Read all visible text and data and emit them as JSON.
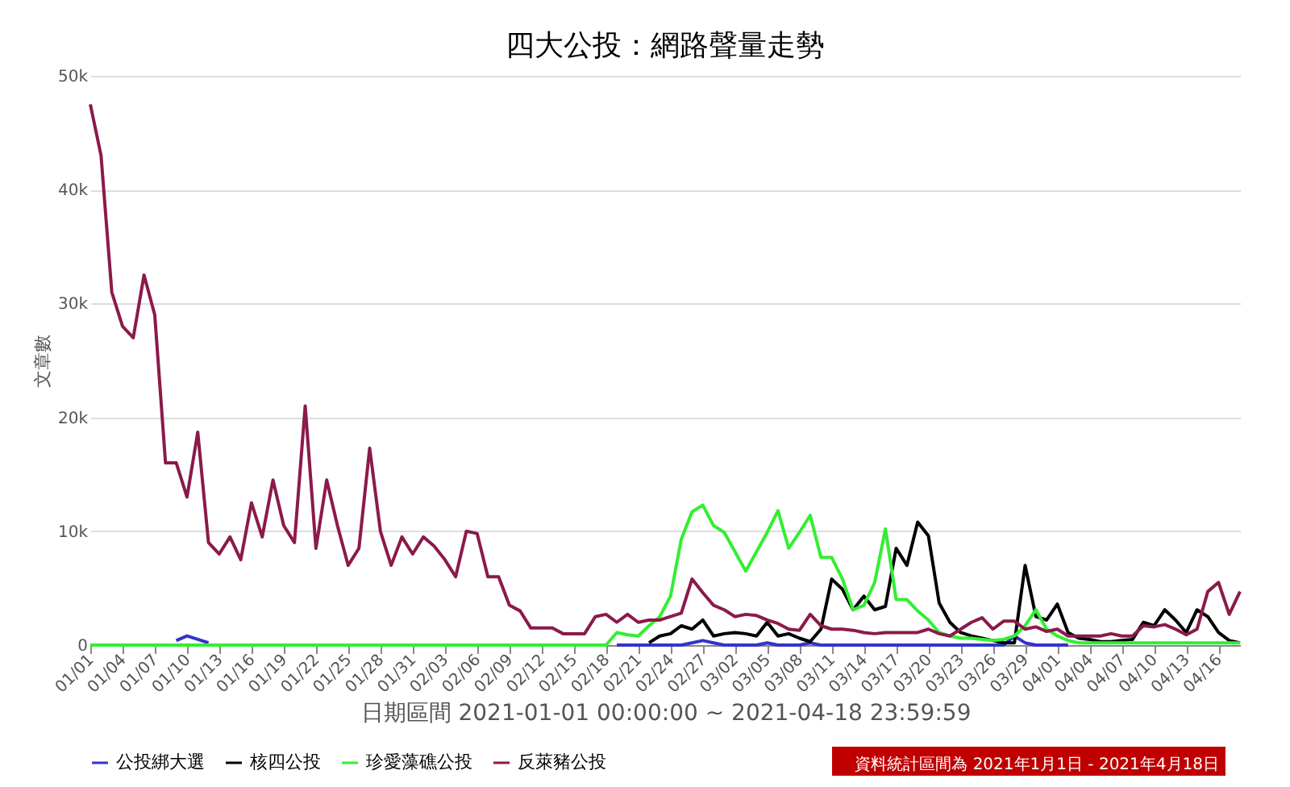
{
  "chart_data": {
    "type": "line",
    "title": "四大公投：網路聲量走勢",
    "xlabel": "日期區間 2021-01-01 00:00:00 ~ 2021-04-18 23:59:59",
    "ylabel": "文章數",
    "categories": [
      "01/01",
      null,
      null,
      "01/04",
      null,
      null,
      "01/07",
      null,
      null,
      "01/10",
      null,
      null,
      "01/13",
      null,
      null,
      "01/16",
      null,
      null,
      "01/19",
      null,
      null,
      "01/22",
      null,
      null,
      "01/25",
      null,
      null,
      "01/28",
      null,
      null,
      "01/31",
      null,
      null,
      "02/03",
      null,
      null,
      "02/06",
      null,
      null,
      "02/09",
      null,
      null,
      "02/12",
      null,
      null,
      "02/15",
      null,
      null,
      "02/18",
      null,
      null,
      "02/21",
      null,
      null,
      "02/24",
      null,
      null,
      "02/27",
      null,
      null,
      "03/02",
      null,
      null,
      "03/05",
      null,
      null,
      "03/08",
      null,
      null,
      "03/11",
      null,
      null,
      "03/14",
      null,
      null,
      "03/17",
      null,
      null,
      "03/20",
      null,
      null,
      "03/23",
      null,
      null,
      "03/26",
      null,
      null,
      "03/29",
      null,
      null,
      "04/01",
      null,
      null,
      "04/04",
      null,
      null,
      "04/07",
      null,
      null,
      "04/10",
      null,
      null,
      "04/13",
      null,
      null,
      "04/16",
      null,
      null
    ],
    "series": [
      {
        "name": "公投綁大選",
        "color": "#3333cc",
        "values": [
          null,
          null,
          null,
          null,
          null,
          null,
          null,
          null,
          400,
          800,
          500,
          200,
          null,
          null,
          null,
          null,
          null,
          null,
          null,
          null,
          null,
          null,
          null,
          null,
          null,
          null,
          null,
          null,
          null,
          null,
          null,
          null,
          null,
          null,
          null,
          null,
          null,
          null,
          null,
          null,
          null,
          null,
          null,
          null,
          null,
          null,
          null,
          null,
          null,
          0,
          0,
          0,
          0,
          0,
          0,
          0,
          200,
          400,
          200,
          0,
          0,
          0,
          0,
          200,
          0,
          0,
          0,
          200,
          0,
          0,
          0,
          0,
          0,
          0,
          0,
          0,
          0,
          0,
          0,
          0,
          0,
          0,
          0,
          0,
          0,
          0,
          800,
          200,
          0,
          0,
          0,
          0,
          null,
          null,
          null,
          null,
          null,
          null,
          null,
          null,
          null,
          null,
          null,
          null,
          null,
          null,
          null,
          null
        ]
      },
      {
        "name": "核四公投",
        "color": "#000000",
        "values": [
          null,
          null,
          null,
          null,
          null,
          null,
          null,
          null,
          null,
          null,
          null,
          null,
          null,
          null,
          null,
          null,
          null,
          null,
          null,
          null,
          null,
          null,
          null,
          null,
          null,
          null,
          null,
          null,
          null,
          null,
          null,
          null,
          null,
          null,
          null,
          null,
          null,
          null,
          null,
          null,
          null,
          null,
          null,
          null,
          null,
          null,
          null,
          null,
          null,
          null,
          null,
          null,
          200,
          800,
          1000,
          1700,
          1400,
          2200,
          800,
          1000,
          1100,
          1000,
          800,
          2000,
          800,
          1000,
          600,
          300,
          1400,
          5800,
          4900,
          3100,
          4300,
          3100,
          3400,
          8500,
          7000,
          10800,
          9600,
          3700,
          2000,
          1100,
          800,
          600,
          400,
          200,
          200,
          7000,
          2500,
          2200,
          3600,
          1100,
          600,
          500,
          300,
          300,
          400,
          500,
          2000,
          1700,
          3100,
          2200,
          1100,
          3100,
          2500,
          1100,
          400,
          200
        ]
      },
      {
        "name": "珍愛藻礁公投",
        "color": "#33ee33",
        "values": [
          0,
          0,
          0,
          0,
          0,
          0,
          0,
          0,
          0,
          0,
          0,
          0,
          0,
          0,
          0,
          0,
          0,
          0,
          0,
          0,
          0,
          0,
          0,
          0,
          0,
          0,
          0,
          0,
          0,
          0,
          0,
          0,
          0,
          0,
          0,
          0,
          0,
          0,
          0,
          0,
          0,
          0,
          0,
          0,
          0,
          0,
          0,
          0,
          0,
          1100,
          900,
          800,
          1700,
          2500,
          4300,
          9300,
          11700,
          12300,
          10500,
          9900,
          8200,
          6500,
          8200,
          9900,
          11800,
          8500,
          9900,
          11400,
          7700,
          7700,
          5800,
          3100,
          3500,
          5500,
          10200,
          4000,
          4000,
          3000,
          2200,
          1100,
          800,
          600,
          600,
          500,
          400,
          500,
          800,
          1700,
          3100,
          1400,
          800,
          400,
          200,
          200,
          200,
          200,
          200,
          200,
          200,
          200,
          200,
          200,
          200,
          200,
          200,
          200,
          200,
          200
        ]
      },
      {
        "name": "反萊豬公投",
        "color": "#8b1a4a",
        "values": [
          47500,
          43000,
          31000,
          28000,
          27000,
          32500,
          29000,
          16000,
          16000,
          13000,
          18700,
          9000,
          8000,
          9500,
          7500,
          12500,
          9500,
          14500,
          10500,
          9000,
          21000,
          8500,
          14500,
          10500,
          7000,
          8500,
          17300,
          10000,
          7000,
          9500,
          8000,
          9500,
          8700,
          7500,
          6000,
          10000,
          9800,
          6000,
          6000,
          3500,
          3000,
          1500,
          1500,
          1500,
          1000,
          1000,
          1000,
          2500,
          2700,
          2000,
          2700,
          2000,
          2200,
          2200,
          2500,
          2800,
          5800,
          4600,
          3500,
          3100,
          2500,
          2700,
          2600,
          2200,
          1900,
          1400,
          1300,
          2700,
          1700,
          1400,
          1400,
          1300,
          1100,
          1000,
          1100,
          1100,
          1100,
          1100,
          1400,
          1000,
          800,
          1400,
          2000,
          2400,
          1400,
          2100,
          2100,
          1400,
          1600,
          1200,
          1400,
          800,
          800,
          800,
          800,
          1000,
          800,
          800,
          1700,
          1600,
          1800,
          1400,
          900,
          1400,
          4700,
          5500,
          2700,
          4700
        ]
      }
    ],
    "ylim": [
      0,
      50000
    ],
    "yticks": [
      0,
      {
        "value": 10000,
        "label": "10k"
      },
      {
        "value": 20000,
        "label": "20k"
      },
      {
        "value": 30000,
        "label": "30k"
      },
      {
        "value": 40000,
        "label": "40k"
      },
      {
        "value": 50000,
        "label": "50k"
      }
    ],
    "grid": "y",
    "legend": "bottom",
    "marker": "none",
    "line_style": "solid",
    "annotations": [
      "資料統計區間為 2021年1月1日 - 2021年4月18日"
    ]
  }
}
